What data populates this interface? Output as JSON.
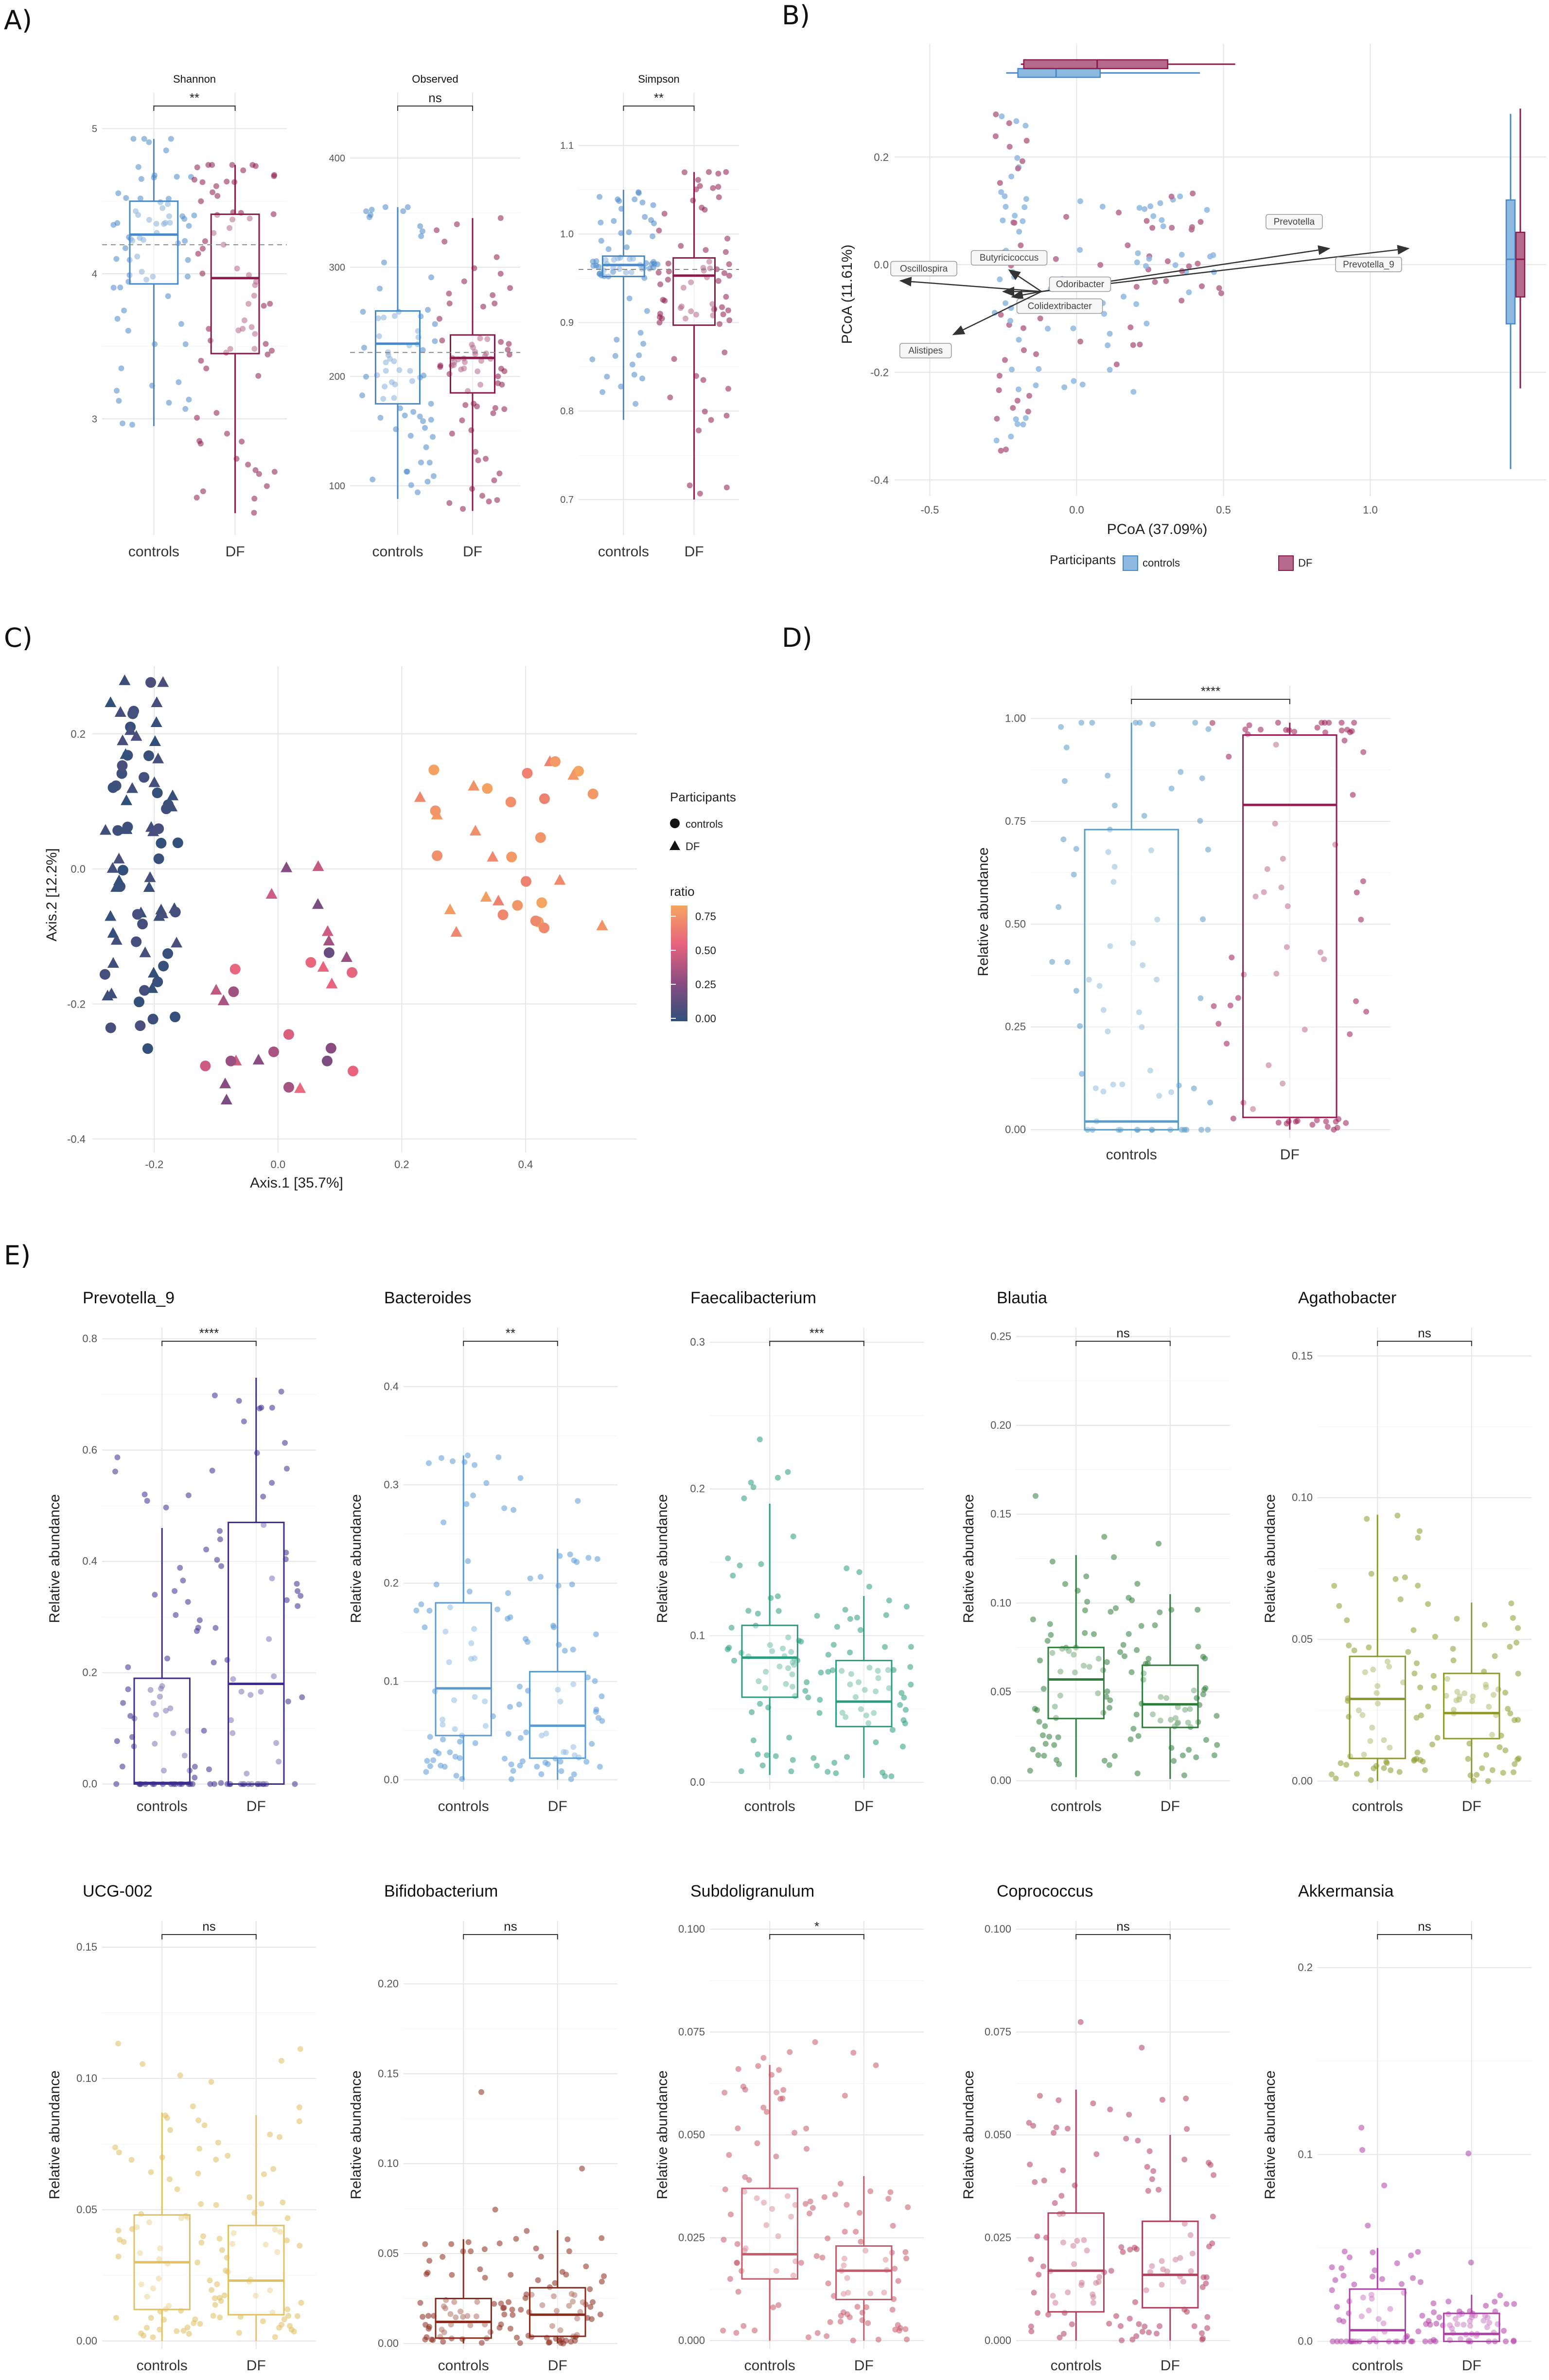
{
  "colors": {
    "controls": "#4a89c8",
    "controls_light": "#8db8e0",
    "df": "#8b1a4a",
    "df_light": "#b56a8c",
    "grid": "#e6e6e6",
    "text": "#222222"
  },
  "panel_labels": {
    "A": "A)",
    "B": "B)",
    "C": "C)",
    "D": "D)",
    "E": "E)"
  },
  "panel_a": {
    "charts": [
      {
        "title": "Shannon",
        "sig": "**",
        "yticks": [
          "3",
          "4",
          "5"
        ],
        "ylim": [
          2.2,
          5.25
        ],
        "controls": {
          "q1": 3.93,
          "median": 4.27,
          "q3": 4.5,
          "lo": 2.95,
          "hi": 4.93
        },
        "df": {
          "q1": 3.45,
          "median": 3.97,
          "q3": 4.41,
          "lo": 2.35,
          "hi": 4.75
        },
        "ref": 4.2
      },
      {
        "title": "Observed",
        "sig": "ns",
        "yticks": [
          "100",
          "200",
          "300",
          "400"
        ],
        "ylim": [
          55,
          460
        ],
        "controls": {
          "q1": 175,
          "median": 230,
          "q3": 260,
          "lo": 88,
          "hi": 355
        },
        "df": {
          "q1": 185,
          "median": 217,
          "q3": 238,
          "lo": 77,
          "hi": 345
        },
        "ref": 222
      },
      {
        "title": "Simpson",
        "sig": "**",
        "yticks": [
          "0.7",
          "0.8",
          "0.9",
          "1.0",
          "1.1"
        ],
        "ylim": [
          0.66,
          1.16
        ],
        "controls": {
          "q1": 0.952,
          "median": 0.965,
          "q3": 0.975,
          "lo": 0.79,
          "hi": 1.05
        },
        "df": {
          "q1": 0.897,
          "median": 0.953,
          "q3": 0.973,
          "lo": 0.7,
          "hi": 1.07
        },
        "ref": 0.96
      }
    ],
    "categories": [
      "controls",
      "DF"
    ]
  },
  "panel_b": {
    "xlabel": "PCoA (37.09%)",
    "ylabel": "PCoA (11.61%)",
    "xticks": [
      "-0.5",
      "0.0",
      "0.5",
      "1.0"
    ],
    "yticks": [
      "-0.4",
      "-0.2",
      "0.0",
      "0.2"
    ],
    "xlim": [
      -0.62,
      1.4
    ],
    "ylim": [
      -0.43,
      0.32
    ],
    "legend_title": "Participants",
    "legend": [
      "controls",
      "DF"
    ],
    "arrows": [
      {
        "label": "Prevotella",
        "x": 0.86,
        "y": 0.03
      },
      {
        "label": "Prevotella_9",
        "x": 1.13,
        "y": 0.03
      },
      {
        "label": "Butyricicoccus",
        "x": -0.23,
        "y": -0.01
      },
      {
        "label": "Oscillospira",
        "x": -0.6,
        "y": -0.03
      },
      {
        "label": "Odoribacter",
        "x": -0.25,
        "y": -0.05
      },
      {
        "label": "Colidextribacter",
        "x": -0.22,
        "y": -0.06
      },
      {
        "label": "Alistipes",
        "x": -0.42,
        "y": -0.13
      }
    ],
    "xbox": {
      "controls": {
        "lo": -0.24,
        "q1": -0.2,
        "median": -0.07,
        "q3": 0.08,
        "hi": 0.42
      },
      "df": {
        "lo": -0.19,
        "q1": -0.18,
        "median": 0.07,
        "q3": 0.31,
        "hi": 0.54
      }
    },
    "ybox": {
      "controls": {
        "lo": -0.38,
        "q1": -0.11,
        "median": 0.01,
        "q3": 0.12,
        "hi": 0.28
      },
      "df": {
        "lo": -0.23,
        "q1": -0.06,
        "median": 0.01,
        "q3": 0.06,
        "hi": 0.29
      }
    }
  },
  "panel_c": {
    "xlabel": "Axis.1   [35.7%]",
    "ylabel": "Axis.2   [12.2%]",
    "xticks": [
      "-0.2",
      "0.0",
      "0.2",
      "0.4"
    ],
    "yticks": [
      "-0.4",
      "-0.2",
      "0.0",
      "0.2"
    ],
    "xlim": [
      -0.3,
      0.58
    ],
    "ylim": [
      -0.42,
      0.3
    ],
    "legend_title": "Participants",
    "legend": [
      "controls",
      "DF"
    ],
    "ratio_title": "ratio",
    "ratio_ticks": [
      "0.00",
      "0.25",
      "0.50",
      "0.75"
    ],
    "gradient": [
      "#30507a",
      "#8a4c82",
      "#e8637f",
      "#f4a560"
    ]
  },
  "panel_d": {
    "ylabel": "Relative abundance",
    "sig": "****",
    "yticks": [
      "0.00",
      "0.25",
      "0.50",
      "0.75",
      "1.00"
    ],
    "ylim": [
      -0.02,
      1.08
    ],
    "categories": [
      "controls",
      "DF"
    ],
    "controls": {
      "q1": 0.0,
      "median": 0.02,
      "q3": 0.73,
      "lo": 0.0,
      "hi": 0.99
    },
    "df": {
      "q1": 0.03,
      "median": 0.79,
      "q3": 0.96,
      "lo": 0.0,
      "hi": 0.99
    }
  },
  "panel_e": {
    "ylabel": "Relative abundance",
    "categories": [
      "controls",
      "DF"
    ],
    "charts": [
      {
        "title": "Prevotella_9",
        "sig": "****",
        "color": "#3a2d8c",
        "ylim": [
          -0.01,
          0.82
        ],
        "yticks": [
          "0.0",
          "0.2",
          "0.4",
          "0.6",
          "0.8"
        ],
        "controls": {
          "q1": 0.0,
          "median": 0.002,
          "q3": 0.19,
          "lo": 0.0,
          "hi": 0.46
        },
        "df": {
          "q1": 0.0,
          "median": 0.18,
          "q3": 0.47,
          "lo": 0.0,
          "hi": 0.73
        }
      },
      {
        "title": "Bacteroides",
        "sig": "**",
        "color": "#5b9bd5",
        "ylim": [
          -0.01,
          0.46
        ],
        "yticks": [
          "0.0",
          "0.1",
          "0.2",
          "0.3",
          "0.4"
        ],
        "controls": {
          "q1": 0.045,
          "median": 0.093,
          "q3": 0.18,
          "lo": 0.0,
          "hi": 0.33
        },
        "df": {
          "q1": 0.022,
          "median": 0.055,
          "q3": 0.11,
          "lo": 0.0,
          "hi": 0.235
        }
      },
      {
        "title": "Faecalibacterium",
        "sig": "***",
        "color": "#2a9d7e",
        "ylim": [
          -0.005,
          0.31
        ],
        "yticks": [
          "0.0",
          "0.1",
          "0.2",
          "0.3"
        ],
        "controls": {
          "q1": 0.058,
          "median": 0.085,
          "q3": 0.107,
          "lo": 0.005,
          "hi": 0.19
        },
        "df": {
          "q1": 0.038,
          "median": 0.055,
          "q3": 0.083,
          "lo": 0.003,
          "hi": 0.127
        }
      },
      {
        "title": "Blautia",
        "sig": "ns",
        "color": "#2f7d3a",
        "ylim": [
          -0.005,
          0.255
        ],
        "yticks": [
          "0.00",
          "0.05",
          "0.10",
          "0.15",
          "0.20",
          "0.25"
        ],
        "controls": {
          "q1": 0.035,
          "median": 0.057,
          "q3": 0.075,
          "lo": 0.002,
          "hi": 0.127
        },
        "df": {
          "q1": 0.03,
          "median": 0.043,
          "q3": 0.065,
          "lo": 0.001,
          "hi": 0.105
        }
      },
      {
        "title": "Agathobacter",
        "sig": "ns",
        "color": "#8c9a2c",
        "ylim": [
          -0.003,
          0.16
        ],
        "yticks": [
          "0.00",
          "0.05",
          "0.10",
          "0.15"
        ],
        "controls": {
          "q1": 0.008,
          "median": 0.029,
          "q3": 0.044,
          "lo": 0.0,
          "hi": 0.094
        },
        "df": {
          "q1": 0.015,
          "median": 0.024,
          "q3": 0.038,
          "lo": 0.0,
          "hi": 0.063
        }
      },
      {
        "title": "UCG-002",
        "sig": "ns",
        "color": "#e0c060",
        "ylim": [
          -0.003,
          0.16
        ],
        "yticks": [
          "0.00",
          "0.05",
          "0.10",
          "0.15"
        ],
        "controls": {
          "q1": 0.012,
          "median": 0.03,
          "q3": 0.048,
          "lo": 0.0,
          "hi": 0.087
        },
        "df": {
          "q1": 0.01,
          "median": 0.023,
          "q3": 0.044,
          "lo": 0.0,
          "hi": 0.086
        }
      },
      {
        "title": "Bifidobacterium",
        "sig": "ns",
        "color": "#8b2a1a",
        "ylim": [
          -0.003,
          0.235
        ],
        "yticks": [
          "0.00",
          "0.05",
          "0.10",
          "0.15",
          "0.20"
        ],
        "controls": {
          "q1": 0.003,
          "median": 0.012,
          "q3": 0.025,
          "lo": 0.0,
          "hi": 0.058
        },
        "df": {
          "q1": 0.004,
          "median": 0.016,
          "q3": 0.031,
          "lo": 0.0,
          "hi": 0.063
        }
      },
      {
        "title": "Subdoligranulum",
        "sig": "*",
        "color": "#c75a6a",
        "ylim": [
          -0.002,
          0.102
        ],
        "yticks": [
          "0.000",
          "0.025",
          "0.050",
          "0.075",
          "0.100"
        ],
        "controls": {
          "q1": 0.015,
          "median": 0.021,
          "q3": 0.037,
          "lo": 0.0,
          "hi": 0.067
        },
        "df": {
          "q1": 0.01,
          "median": 0.017,
          "q3": 0.023,
          "lo": 0.0,
          "hi": 0.04
        }
      },
      {
        "title": "Coprococcus",
        "sig": "ns",
        "color": "#b0405e",
        "ylim": [
          -0.002,
          0.102
        ],
        "yticks": [
          "0.000",
          "0.025",
          "0.050",
          "0.075",
          "0.100"
        ],
        "controls": {
          "q1": 0.007,
          "median": 0.017,
          "q3": 0.031,
          "lo": 0.0,
          "hi": 0.061
        },
        "df": {
          "q1": 0.008,
          "median": 0.016,
          "q3": 0.029,
          "lo": 0.0,
          "hi": 0.05
        }
      },
      {
        "title": "Akkermansia",
        "sig": "ns",
        "color": "#b040a8",
        "ylim": [
          -0.004,
          0.225
        ],
        "yticks": [
          "0.0",
          "0.1",
          "0.2"
        ],
        "controls": {
          "q1": 0.0,
          "median": 0.006,
          "q3": 0.028,
          "lo": 0.0,
          "hi": 0.05
        },
        "df": {
          "q1": 0.0,
          "median": 0.004,
          "q3": 0.015,
          "lo": 0.0,
          "hi": 0.025
        }
      }
    ]
  }
}
